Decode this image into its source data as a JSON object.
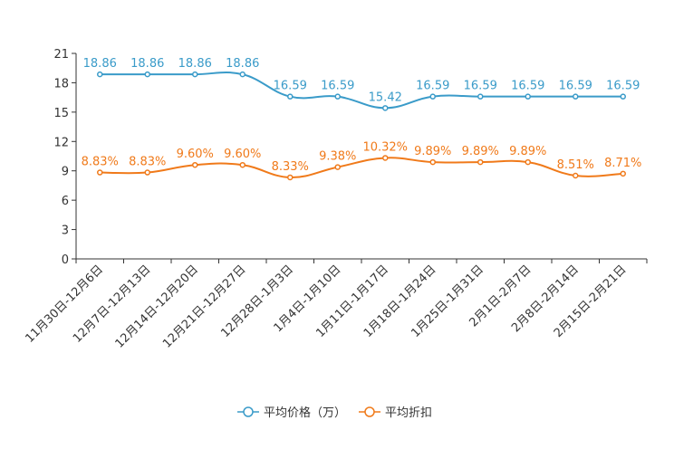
{
  "chart_data": {
    "type": "line",
    "title": "",
    "xlabel": "",
    "ylabel": "",
    "ylim": [
      0,
      21
    ],
    "yticks": [
      0,
      3,
      6,
      9,
      12,
      15,
      18,
      21
    ],
    "grid": false,
    "legend_position": "bottom-center",
    "categories": [
      "11月30日-12月6日",
      "12月7日-12月13日",
      "12月14日-12月20日",
      "12月21日-12月27日",
      "12月28日-1月3日",
      "1月4日-1月10日",
      "1月11日-1月17日",
      "1月18日-1月24日",
      "1月25日-1月31日",
      "2月1日-2月7日",
      "2月8日-2月14日",
      "2月15日-2月21日"
    ],
    "series": [
      {
        "name": "平均价格（万）",
        "color": "#3a9bc9",
        "values": [
          18.86,
          18.86,
          18.86,
          18.86,
          16.59,
          16.59,
          15.42,
          16.59,
          16.59,
          16.59,
          16.59,
          16.59
        ],
        "labels": [
          "18.86",
          "18.86",
          "18.86",
          "18.86",
          "16.59",
          "16.59",
          "15.42",
          "16.59",
          "16.59",
          "16.59",
          "16.59",
          "16.59"
        ]
      },
      {
        "name": "平均折扣",
        "color": "#f07a1a",
        "values": [
          8.83,
          8.83,
          9.6,
          9.6,
          8.33,
          9.38,
          10.32,
          9.89,
          9.89,
          9.89,
          8.51,
          8.71
        ],
        "labels": [
          "8.83%",
          "8.83%",
          "9.60%",
          "9.60%",
          "8.33%",
          "9.38%",
          "10.32%",
          "9.89%",
          "9.89%",
          "9.89%",
          "8.51%",
          "8.71%"
        ]
      }
    ]
  }
}
